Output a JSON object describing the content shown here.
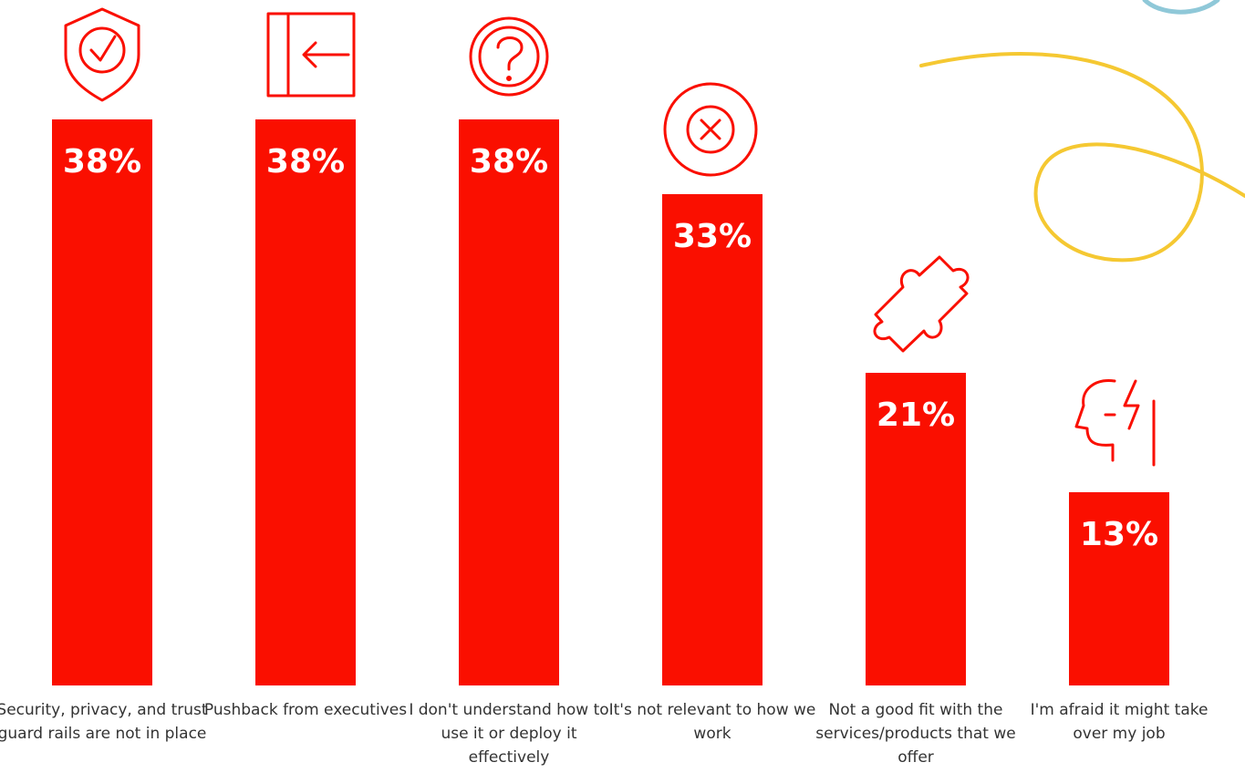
{
  "chart_data": {
    "type": "bar",
    "categories": [
      "Security, privacy, and trust guard rails are not in place",
      "Pushback from executives",
      "I don't understand how to use it or deploy it effectively",
      "It's not relevant to how we work",
      "Not a good fit with the services/products that we offer",
      "I'm afraid it might take over my job"
    ],
    "values": [
      38,
      38,
      38,
      33,
      21,
      13
    ],
    "value_labels": [
      "38%",
      "38%",
      "38%",
      "33%",
      "21%",
      "13%"
    ],
    "color": "#fa0f00"
  }
}
